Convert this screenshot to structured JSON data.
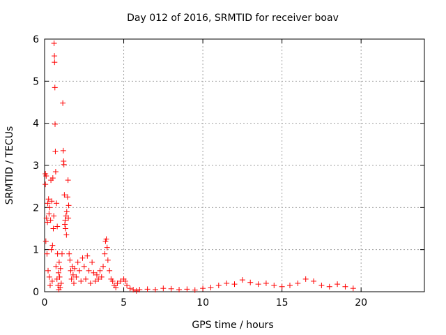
{
  "chart_data": {
    "type": "scatter",
    "title": "Day 012 of 2016, SRMTID for receiver boav",
    "xlabel": "GPS time / hours",
    "ylabel": "SRMTID / TECUs",
    "xlim": [
      0,
      24
    ],
    "ylim": [
      0,
      6
    ],
    "xticks": [
      0,
      5,
      10,
      15,
      20
    ],
    "yticks": [
      0,
      1,
      2,
      3,
      4,
      5,
      6
    ],
    "grid": true,
    "marker": "+",
    "marker_color": "#ff0000",
    "series": [
      {
        "name": "SRMTID",
        "points": [
          [
            0.05,
            2.8
          ],
          [
            0.05,
            2.55
          ],
          [
            0.08,
            1.2
          ],
          [
            0.1,
            2.75
          ],
          [
            0.12,
            1.75
          ],
          [
            0.15,
            0.9
          ],
          [
            0.18,
            1.65
          ],
          [
            0.2,
            2.1
          ],
          [
            0.22,
            0.5
          ],
          [
            0.25,
            2.2
          ],
          [
            0.28,
            1.85
          ],
          [
            0.3,
            0.35
          ],
          [
            0.32,
            2.0
          ],
          [
            0.35,
            0.15
          ],
          [
            0.38,
            1.7
          ],
          [
            0.4,
            2.65
          ],
          [
            0.42,
            1.0
          ],
          [
            0.45,
            2.15
          ],
          [
            0.48,
            0.25
          ],
          [
            0.5,
            1.1
          ],
          [
            0.52,
            2.7
          ],
          [
            0.55,
            1.5
          ],
          [
            0.58,
            1.8
          ],
          [
            0.6,
            5.9
          ],
          [
            0.62,
            5.6
          ],
          [
            0.63,
            5.45
          ],
          [
            0.65,
            4.85
          ],
          [
            0.66,
            3.98
          ],
          [
            0.68,
            3.33
          ],
          [
            0.7,
            2.85
          ],
          [
            0.72,
            0.6
          ],
          [
            0.75,
            2.1
          ],
          [
            0.78,
            0.3
          ],
          [
            0.8,
            1.55
          ],
          [
            0.82,
            0.9
          ],
          [
            0.85,
            0.15
          ],
          [
            0.88,
            0.45
          ],
          [
            0.9,
            0.05
          ],
          [
            0.92,
            0.7
          ],
          [
            0.95,
            0.35
          ],
          [
            0.98,
            0.1
          ],
          [
            1.0,
            0.55
          ],
          [
            1.05,
            0.2
          ],
          [
            1.1,
            0.9
          ],
          [
            1.15,
            4.48
          ],
          [
            1.18,
            3.35
          ],
          [
            1.2,
            3.1
          ],
          [
            1.22,
            3.02
          ],
          [
            1.25,
            2.3
          ],
          [
            1.28,
            1.6
          ],
          [
            1.3,
            1.7
          ],
          [
            1.32,
            1.5
          ],
          [
            1.35,
            1.8
          ],
          [
            1.38,
            1.35
          ],
          [
            1.4,
            1.9
          ],
          [
            1.45,
            2.25
          ],
          [
            1.48,
            2.65
          ],
          [
            1.5,
            1.75
          ],
          [
            1.52,
            2.05
          ],
          [
            1.55,
            0.9
          ],
          [
            1.6,
            0.75
          ],
          [
            1.65,
            0.5
          ],
          [
            1.7,
            0.3
          ],
          [
            1.75,
            0.6
          ],
          [
            1.8,
            0.4
          ],
          [
            1.85,
            0.2
          ],
          [
            1.9,
            0.55
          ],
          [
            2.0,
            0.35
          ],
          [
            2.1,
            0.7
          ],
          [
            2.2,
            0.5
          ],
          [
            2.3,
            0.25
          ],
          [
            2.4,
            0.8
          ],
          [
            2.5,
            0.6
          ],
          [
            2.6,
            0.3
          ],
          [
            2.7,
            0.85
          ],
          [
            2.8,
            0.5
          ],
          [
            2.9,
            0.2
          ],
          [
            3.0,
            0.7
          ],
          [
            3.1,
            0.45
          ],
          [
            3.2,
            0.25
          ],
          [
            3.3,
            0.4
          ],
          [
            3.4,
            0.3
          ],
          [
            3.5,
            0.5
          ],
          [
            3.6,
            0.35
          ],
          [
            3.7,
            0.6
          ],
          [
            3.8,
            0.9
          ],
          [
            3.85,
            1.2
          ],
          [
            3.9,
            1.25
          ],
          [
            3.95,
            1.05
          ],
          [
            4.0,
            0.75
          ],
          [
            4.1,
            0.5
          ],
          [
            4.2,
            0.3
          ],
          [
            4.3,
            0.25
          ],
          [
            4.4,
            0.15
          ],
          [
            4.5,
            0.1
          ],
          [
            4.6,
            0.2
          ],
          [
            4.8,
            0.25
          ],
          [
            5.0,
            0.3
          ],
          [
            5.1,
            0.25
          ],
          [
            5.2,
            0.15
          ],
          [
            5.4,
            0.08
          ],
          [
            5.6,
            0.05
          ],
          [
            5.8,
            0.02
          ],
          [
            6.0,
            0.05
          ],
          [
            6.5,
            0.06
          ],
          [
            7.0,
            0.05
          ],
          [
            7.5,
            0.08
          ],
          [
            8.0,
            0.07
          ],
          [
            8.5,
            0.05
          ],
          [
            9.0,
            0.06
          ],
          [
            9.5,
            0.04
          ],
          [
            10.0,
            0.08
          ],
          [
            10.5,
            0.1
          ],
          [
            11.0,
            0.15
          ],
          [
            11.5,
            0.2
          ],
          [
            12.0,
            0.18
          ],
          [
            12.5,
            0.28
          ],
          [
            13.0,
            0.22
          ],
          [
            13.5,
            0.18
          ],
          [
            14.0,
            0.2
          ],
          [
            14.5,
            0.15
          ],
          [
            15.0,
            0.12
          ],
          [
            15.5,
            0.15
          ],
          [
            16.0,
            0.2
          ],
          [
            16.5,
            0.3
          ],
          [
            17.0,
            0.25
          ],
          [
            17.5,
            0.15
          ],
          [
            18.0,
            0.12
          ],
          [
            18.5,
            0.18
          ],
          [
            19.0,
            0.12
          ],
          [
            19.5,
            0.08
          ]
        ]
      }
    ]
  }
}
